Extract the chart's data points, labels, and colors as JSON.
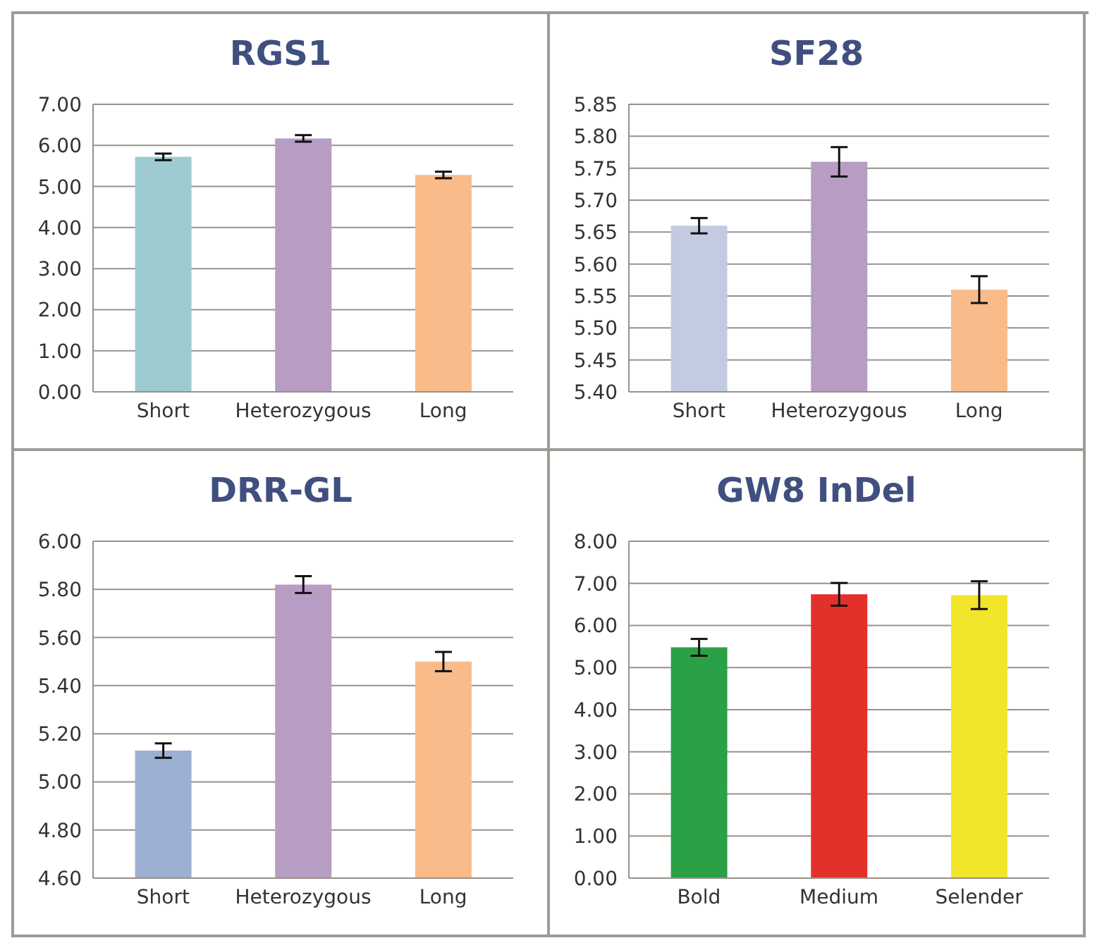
{
  "chart_data": [
    {
      "type": "bar",
      "title": "RGS1",
      "categories": [
        "Short",
        "Heterozygous",
        "Long"
      ],
      "values": [
        5.72,
        6.17,
        5.28
      ],
      "errors": [
        0.08,
        0.08,
        0.08
      ],
      "colors": [
        "#9dcbd1",
        "#b79cc4",
        "#f9bb8a"
      ],
      "ylim": [
        0,
        7
      ],
      "yticks": [
        {
          "value": 0,
          "label": "0.00"
        },
        {
          "value": 1,
          "label": "1.00"
        },
        {
          "value": 2,
          "label": "2.00"
        },
        {
          "value": 3,
          "label": "3.00"
        },
        {
          "value": 4,
          "label": "4.00"
        },
        {
          "value": 5,
          "label": "5.00"
        },
        {
          "value": 6,
          "label": "6.00"
        },
        {
          "value": 7,
          "label": "7.00"
        }
      ],
      "grid": "y",
      "legend": false
    },
    {
      "type": "bar",
      "title": "SF28",
      "categories": [
        "Short",
        "Heterozygous",
        "Long"
      ],
      "values": [
        5.66,
        5.76,
        5.56
      ],
      "errors": [
        0.012,
        0.023,
        0.021
      ],
      "colors": [
        "#c3cbe3",
        "#b79cc4",
        "#f9bb8a"
      ],
      "ylim": [
        5.4,
        5.85
      ],
      "yticks": [
        {
          "value": 5.4,
          "label": "5.40"
        },
        {
          "value": 5.45,
          "label": "5.45"
        },
        {
          "value": 5.5,
          "label": "5.50"
        },
        {
          "value": 5.55,
          "label": "5.55"
        },
        {
          "value": 5.6,
          "label": "5.60"
        },
        {
          "value": 5.65,
          "label": "5.65"
        },
        {
          "value": 5.7,
          "label": "5.70"
        },
        {
          "value": 5.75,
          "label": "5.75"
        },
        {
          "value": 5.8,
          "label": "5.80"
        },
        {
          "value": 5.85,
          "label": "5.85"
        }
      ],
      "grid": "y",
      "legend": false
    },
    {
      "type": "bar",
      "title": "DRR-GL",
      "categories": [
        "Short",
        "Heterozygous",
        "Long"
      ],
      "values": [
        5.13,
        5.82,
        5.5
      ],
      "errors": [
        0.03,
        0.035,
        0.04
      ],
      "colors": [
        "#9bb0d2",
        "#b79cc4",
        "#f9bb8a"
      ],
      "ylim": [
        4.6,
        6
      ],
      "yticks": [
        {
          "value": 4.6,
          "label": "4.60"
        },
        {
          "value": 4.8,
          "label": "4.80"
        },
        {
          "value": 5,
          "label": "5.00"
        },
        {
          "value": 5.2,
          "label": "5.20"
        },
        {
          "value": 5.4,
          "label": "5.40"
        },
        {
          "value": 5.6,
          "label": "5.60"
        },
        {
          "value": 5.8,
          "label": "5.80"
        },
        {
          "value": 6,
          "label": "6.00"
        }
      ],
      "grid": "y",
      "legend": false
    },
    {
      "type": "bar",
      "title": "GW8 InDel",
      "categories": [
        "Bold",
        "Medium",
        "Selender"
      ],
      "values": [
        5.48,
        6.74,
        6.72
      ],
      "errors": [
        0.2,
        0.27,
        0.33
      ],
      "colors": [
        "#2aa146",
        "#e3302b",
        "#f2e62b"
      ],
      "ylim": [
        0,
        8
      ],
      "yticks": [
        {
          "value": 0,
          "label": "0.00"
        },
        {
          "value": 1,
          "label": "1.00"
        },
        {
          "value": 2,
          "label": "2.00"
        },
        {
          "value": 3,
          "label": "3.00"
        },
        {
          "value": 4,
          "label": "4.00"
        },
        {
          "value": 5,
          "label": "5.00"
        },
        {
          "value": 6,
          "label": "6.00"
        },
        {
          "value": 7,
          "label": "7.00"
        },
        {
          "value": 8,
          "label": "8.00"
        }
      ],
      "grid": "y",
      "legend": false
    }
  ]
}
